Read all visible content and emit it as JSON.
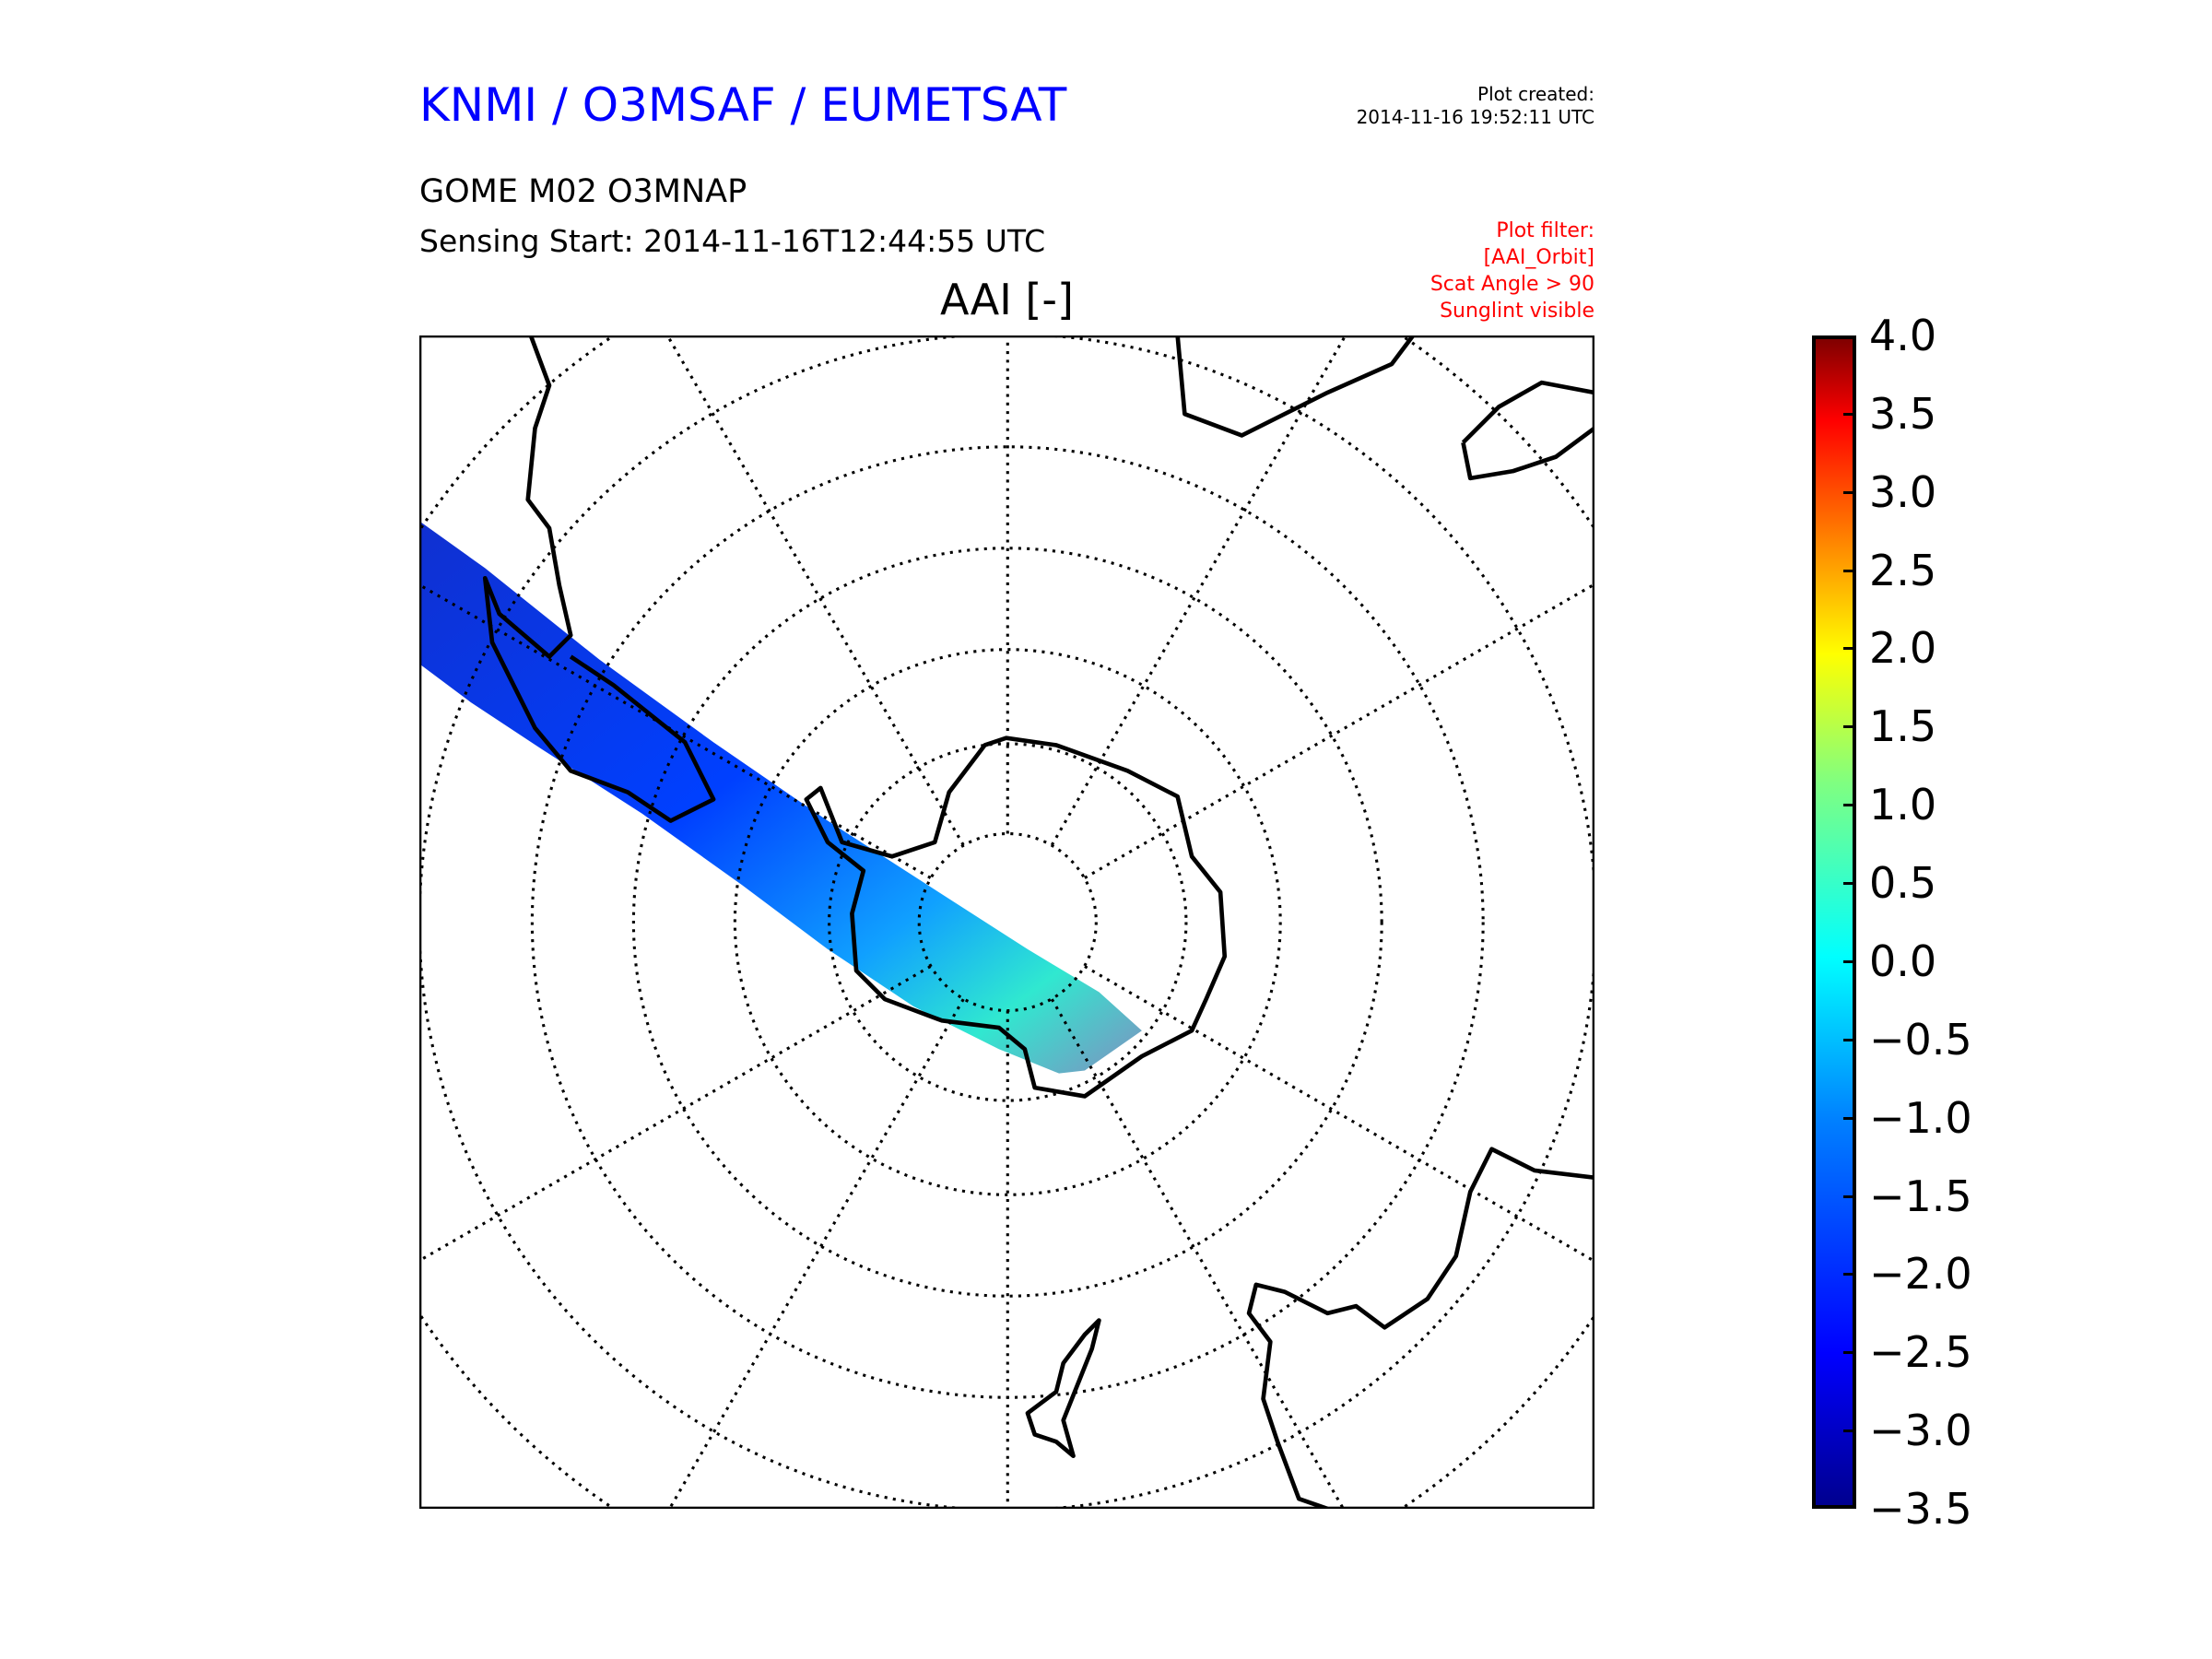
{
  "header": {
    "organization": "KNMI / O3MSAF / EUMETSAT",
    "plot_created_label": "Plot created:",
    "plot_created_value": "2014-11-16 19:52:11 UTC",
    "product": "GOME M02 O3MNAP",
    "sensing_start": "Sensing Start: 2014-11-16T12:44:55 UTC"
  },
  "filter": {
    "lines": [
      "Plot filter:",
      "[AAI_Orbit]",
      "Scat Angle > 90",
      "Sunglint visible"
    ]
  },
  "map": {
    "title": "AAI [-]",
    "projection": "south polar stereographic",
    "land_outline_color": "#000000",
    "swath_colors": [
      "#0000cc",
      "#0050ff",
      "#00c8ff",
      "#40ffb0"
    ]
  },
  "colorbar": {
    "min": -3.5,
    "max": 4.0,
    "colormap": "jet",
    "ticks": [
      "−3.5",
      "−3.0",
      "−2.5",
      "−2.0",
      "−1.5",
      "−1.0",
      "−0.5",
      "0.0",
      "0.5",
      "1.0",
      "1.5",
      "2.0",
      "2.5",
      "3.0",
      "3.5",
      "4.0"
    ]
  }
}
